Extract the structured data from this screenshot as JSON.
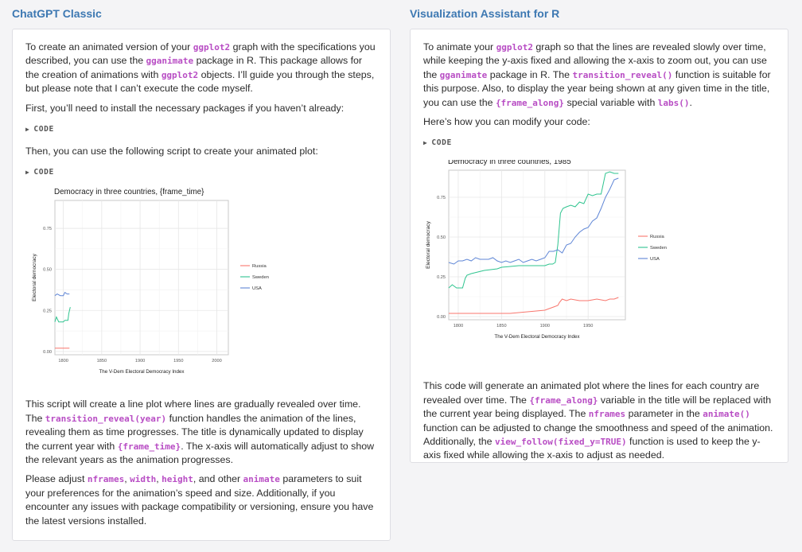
{
  "left": {
    "title": "ChatGPT Classic",
    "intro": [
      {
        "t": "To create an animated version of your "
      },
      {
        "c": "ggplot2"
      },
      {
        "t": " graph with the specifications you described, you can use the "
      },
      {
        "c": "gganimate"
      },
      {
        "t": " package in R. This package allows for the creation of animations with "
      },
      {
        "c": "ggplot2"
      },
      {
        "t": " objects. I’ll guide you through the steps, but please note that I can’t execute the code myself."
      }
    ],
    "install_text": "First, you’ll need to install the necessary packages if you haven’t already:",
    "code_label_1": "CODE",
    "script_text": "Then, you can use the following script to create your animated plot:",
    "code_label_2": "CODE",
    "explain": [
      {
        "t": "This script will create a line plot where lines are gradually revealed over time. The "
      },
      {
        "c": "transition_reveal(year)"
      },
      {
        "t": " function handles the animation of the lines, revealing them as time progresses. The title is dynamically updated to display the current year with "
      },
      {
        "c": "{frame_time}"
      },
      {
        "t": ". The x-axis will automatically adjust to show the relevant years as the animation progresses."
      }
    ],
    "adjust": [
      {
        "t": "Please adjust "
      },
      {
        "c": "nframes"
      },
      {
        "t": ", "
      },
      {
        "c": "width"
      },
      {
        "t": ", "
      },
      {
        "c": "height"
      },
      {
        "t": ", and other "
      },
      {
        "c": "animate"
      },
      {
        "t": " parameters to suit your preferences for the animation’s speed and size. Additionally, if you encounter any issues with package compatibility or versioning, ensure you have the latest versions installed."
      }
    ]
  },
  "right": {
    "title": "Visualization Assistant for R",
    "intro": [
      {
        "t": "To animate your "
      },
      {
        "c": "ggplot2"
      },
      {
        "t": " graph so that the lines are revealed slowly over time, while keeping the y-axis fixed and allowing the x-axis to zoom out, you can use the "
      },
      {
        "c": "gganimate"
      },
      {
        "t": " package in R. The "
      },
      {
        "c": "transition_reveal()"
      },
      {
        "t": " function is suitable for this purpose. Also, to display the year being shown at any given time in the title, you can use the "
      },
      {
        "c": "{frame_along}"
      },
      {
        "t": " special variable with "
      },
      {
        "c": "labs()"
      },
      {
        "t": "."
      }
    ],
    "modify_text": "Here’s how you can modify your code:",
    "code_label": "CODE",
    "outro": [
      {
        "t": "This code will generate an animated plot where the lines for each country are revealed over time. The "
      },
      {
        "c": "{frame_along}"
      },
      {
        "t": " variable in the title will be replaced with the current year being displayed. The "
      },
      {
        "c": "nframes"
      },
      {
        "t": " parameter in the "
      },
      {
        "c": "animate()"
      },
      {
        "t": " function can be adjusted to change the smoothness and speed of the animation. Additionally, the "
      },
      {
        "c": "view_follow(fixed_y=TRUE)"
      },
      {
        "t": " function is used to keep the y-axis fixed while allowing the x-axis to adjust as needed."
      }
    ]
  },
  "chart_data": [
    {
      "type": "line",
      "title": "Democracy in three countries, {frame_time}",
      "xlabel": "The V-Dem Electoral Democracy Index",
      "ylabel": "Electoral democracy",
      "xlim": [
        1789,
        2015
      ],
      "ylim": [
        -0.02,
        0.92
      ],
      "xticks": [
        1800,
        1850,
        1900,
        1950,
        2000
      ],
      "yticks": [
        0.0,
        0.25,
        0.5,
        0.75
      ],
      "ytick_labels": [
        "0.00",
        "0.25",
        "0.50",
        "0.75"
      ],
      "grid": true,
      "legend": "right",
      "series": [
        {
          "name": "Russia",
          "color": "#f8766d",
          "x": [
            1789,
            1798,
            1808
          ],
          "y": [
            0.02,
            0.02,
            0.02
          ]
        },
        {
          "name": "Sweden",
          "color": "#2fc48f",
          "x": [
            1789,
            1791,
            1794,
            1800,
            1802,
            1806,
            1807,
            1809
          ],
          "y": [
            0.18,
            0.21,
            0.18,
            0.18,
            0.19,
            0.19,
            0.23,
            0.27
          ]
        },
        {
          "name": "USA",
          "color": "#5f86d6",
          "x": [
            1789,
            1792,
            1796,
            1800,
            1802,
            1805,
            1808
          ],
          "y": [
            0.34,
            0.35,
            0.34,
            0.34,
            0.36,
            0.35,
            0.35
          ]
        }
      ]
    },
    {
      "type": "line",
      "title": "Democracy in three countries, 1985",
      "xlabel": "The V-Dem Electoral Democracy Index",
      "ylabel": "Electoral democracy",
      "xlim": [
        1789,
        1993
      ],
      "ylim": [
        -0.02,
        0.92
      ],
      "xticks": [
        1800,
        1850,
        1900,
        1950
      ],
      "yticks": [
        0.0,
        0.25,
        0.5,
        0.75
      ],
      "ytick_labels": [
        "0.00",
        "0.25",
        "0.50",
        "0.75"
      ],
      "grid": true,
      "legend": "right",
      "series": [
        {
          "name": "Russia",
          "color": "#f8766d",
          "x": [
            1789,
            1800,
            1850,
            1860,
            1880,
            1900,
            1905,
            1910,
            1915,
            1917,
            1920,
            1925,
            1930,
            1940,
            1950,
            1960,
            1970,
            1975,
            1980,
            1985
          ],
          "y": [
            0.02,
            0.02,
            0.02,
            0.02,
            0.03,
            0.04,
            0.05,
            0.06,
            0.07,
            0.09,
            0.11,
            0.1,
            0.11,
            0.1,
            0.1,
            0.11,
            0.1,
            0.11,
            0.11,
            0.12
          ]
        },
        {
          "name": "Sweden",
          "color": "#2fc48f",
          "x": [
            1789,
            1793,
            1798,
            1805,
            1808,
            1810,
            1815,
            1830,
            1845,
            1850,
            1870,
            1890,
            1900,
            1905,
            1909,
            1912,
            1915,
            1918,
            1921,
            1925,
            1930,
            1935,
            1940,
            1945,
            1950,
            1955,
            1960,
            1965,
            1970,
            1975,
            1980,
            1985
          ],
          "y": [
            0.18,
            0.2,
            0.18,
            0.18,
            0.24,
            0.26,
            0.27,
            0.29,
            0.3,
            0.31,
            0.32,
            0.32,
            0.32,
            0.33,
            0.33,
            0.34,
            0.45,
            0.65,
            0.68,
            0.69,
            0.7,
            0.69,
            0.72,
            0.71,
            0.77,
            0.76,
            0.77,
            0.77,
            0.9,
            0.91,
            0.9,
            0.9
          ]
        },
        {
          "name": "USA",
          "color": "#5f86d6",
          "x": [
            1789,
            1795,
            1800,
            1805,
            1810,
            1815,
            1820,
            1825,
            1830,
            1835,
            1840,
            1845,
            1850,
            1855,
            1860,
            1865,
            1870,
            1875,
            1880,
            1885,
            1890,
            1895,
            1900,
            1905,
            1910,
            1915,
            1920,
            1925,
            1930,
            1935,
            1940,
            1945,
            1950,
            1955,
            1960,
            1965,
            1970,
            1975,
            1980,
            1985
          ],
          "y": [
            0.34,
            0.33,
            0.35,
            0.35,
            0.36,
            0.35,
            0.37,
            0.36,
            0.36,
            0.36,
            0.37,
            0.35,
            0.34,
            0.35,
            0.34,
            0.35,
            0.36,
            0.34,
            0.35,
            0.36,
            0.35,
            0.36,
            0.37,
            0.41,
            0.41,
            0.42,
            0.4,
            0.45,
            0.46,
            0.5,
            0.53,
            0.55,
            0.56,
            0.6,
            0.62,
            0.68,
            0.75,
            0.8,
            0.86,
            0.87
          ]
        }
      ]
    }
  ]
}
